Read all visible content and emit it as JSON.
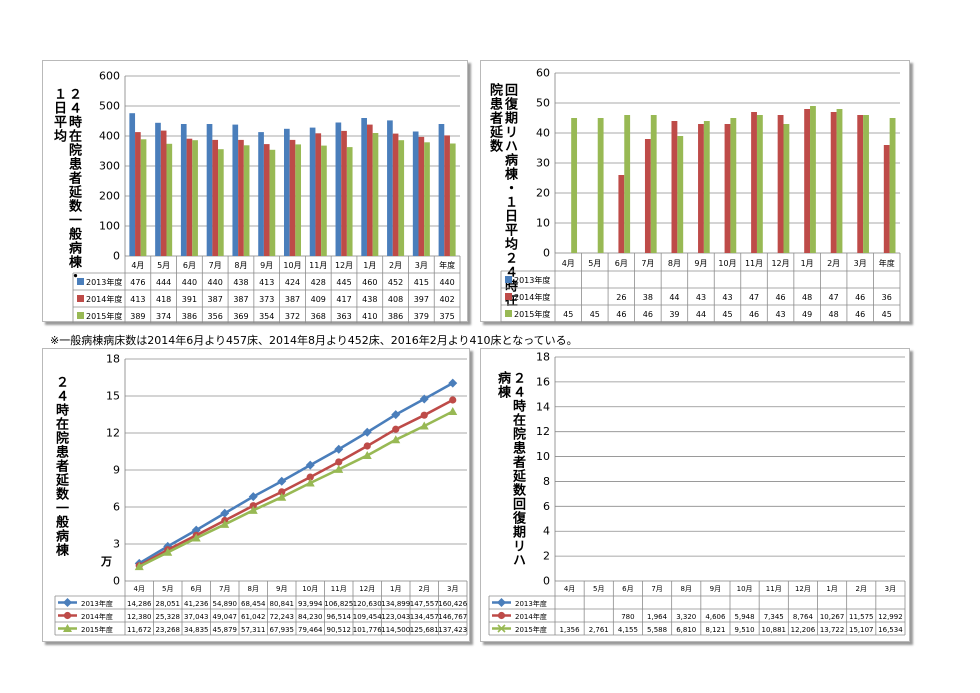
{
  "note": "※一般病棟病床数は2014年6月より457床、2014年8月より452床、2016年2月より410床となっている。",
  "colors": {
    "s2013": "#4a7ebb",
    "s2014": "#be4b48",
    "s2015": "#98b954"
  },
  "chart_data": [
    {
      "id": "c1",
      "type": "bar",
      "ylabel": "２４時在院患者延数 一般病棟・１日平均",
      "ylabel_cols": [
        "２４時在院患者延数",
        "一般病棟・１日平均"
      ],
      "ylim": [
        0,
        600
      ],
      "yticks": [
        0,
        100,
        200,
        300,
        400,
        500,
        600
      ],
      "categories": [
        "4月",
        "5月",
        "6月",
        "7月",
        "8月",
        "9月",
        "10月",
        "11月",
        "12月",
        "1月",
        "2月",
        "3月",
        "年度"
      ],
      "series": [
        {
          "name": "2013年度",
          "color": "#4a7ebb",
          "values": [
            476,
            444,
            440,
            440,
            438,
            413,
            424,
            428,
            445,
            460,
            452,
            415,
            440
          ]
        },
        {
          "name": "2014年度",
          "color": "#be4b48",
          "values": [
            413,
            418,
            391,
            387,
            387,
            373,
            387,
            409,
            417,
            438,
            408,
            397,
            402
          ]
        },
        {
          "name": "2015年度",
          "color": "#98b954",
          "values": [
            389,
            374,
            386,
            356,
            369,
            354,
            372,
            368,
            363,
            410,
            386,
            379,
            375
          ]
        }
      ]
    },
    {
      "id": "c2",
      "type": "bar",
      "ylabel": "回復期リハ病棟・１日平均 ２４時在院患者延数",
      "ylabel_cols": [
        "回復期リハ病棟・１日平均",
        "２４時在院患者延数"
      ],
      "ylim": [
        0,
        60
      ],
      "yticks": [
        0,
        10,
        20,
        30,
        40,
        50,
        60
      ],
      "categories": [
        "4月",
        "5月",
        "6月",
        "7月",
        "8月",
        "9月",
        "10月",
        "11月",
        "12月",
        "1月",
        "2月",
        "3月",
        "年度"
      ],
      "series": [
        {
          "name": "2013年度",
          "color": "#4a7ebb",
          "values": [
            null,
            null,
            null,
            null,
            null,
            null,
            null,
            null,
            null,
            null,
            null,
            null,
            null
          ]
        },
        {
          "name": "2014年度",
          "color": "#be4b48",
          "values": [
            null,
            null,
            26,
            38,
            44,
            43,
            43,
            47,
            46,
            48,
            47,
            46,
            36
          ]
        },
        {
          "name": "2015年度",
          "color": "#98b954",
          "values": [
            45,
            45,
            46,
            46,
            39,
            44,
            45,
            46,
            43,
            49,
            48,
            46,
            45
          ]
        }
      ]
    },
    {
      "id": "c3",
      "type": "line",
      "ylabel": "２４時在院患者延数 一般病棟",
      "ylabel_cols": [
        "２４時在院患者延数",
        "一般病棟"
      ],
      "unit": "万",
      "ylim": [
        0,
        18
      ],
      "yticks": [
        0,
        3,
        6,
        9,
        12,
        15,
        18
      ],
      "categories": [
        "4月",
        "5月",
        "6月",
        "7月",
        "8月",
        "9月",
        "10月",
        "11月",
        "12月",
        "1月",
        "2月",
        "3月"
      ],
      "series": [
        {
          "name": "2013年度",
          "color": "#4a7ebb",
          "marker": "diamond",
          "values": [
            14286,
            28051,
            41236,
            54890,
            68454,
            80841,
            93994,
            106825,
            120630,
            134899,
            147557,
            160426
          ],
          "labels": [
            "14,286",
            "28,051",
            "41,236",
            "54,890",
            "68,454",
            "80,841",
            "93,994",
            "106,825",
            "120,630",
            "134,899",
            "147,557",
            "160,426"
          ]
        },
        {
          "name": "2014年度",
          "color": "#be4b48",
          "marker": "circle",
          "values": [
            12380,
            25328,
            37043,
            49047,
            61042,
            72243,
            84230,
            96514,
            109454,
            123043,
            134457,
            146767
          ],
          "labels": [
            "12,380",
            "25,328",
            "37,043",
            "49,047",
            "61,042",
            "72,243",
            "84,230",
            "96,514",
            "109,454",
            "123,043",
            "134,457",
            "146,767"
          ]
        },
        {
          "name": "2015年度",
          "color": "#98b954",
          "marker": "triangle",
          "values": [
            11672,
            23268,
            34835,
            45879,
            57311,
            67935,
            79464,
            90512,
            101776,
            114500,
            125681,
            137423
          ],
          "labels": [
            "11,672",
            "23,268",
            "34,835",
            "45,879",
            "57,311",
            "67,935",
            "79,464",
            "90,512",
            "101,776",
            "114,500",
            "125,681",
            "137,423"
          ]
        }
      ]
    },
    {
      "id": "c4",
      "type": "line",
      "ylabel": "２４時在院患者延数 回復期リハ病棟",
      "ylabel_cols": [
        "２４時在院患者延数",
        "回復期リハ病棟"
      ],
      "ylim": [
        0,
        18
      ],
      "yticks": [
        0,
        2,
        4,
        6,
        8,
        10,
        12,
        14,
        16,
        18
      ],
      "categories": [
        "4月",
        "5月",
        "6月",
        "7月",
        "8月",
        "9月",
        "10月",
        "11月",
        "12月",
        "1月",
        "2月",
        "3月"
      ],
      "series": [
        {
          "name": "2013年度",
          "color": "#4a7ebb",
          "marker": "diamond",
          "values": [
            null,
            null,
            null,
            null,
            null,
            null,
            null,
            null,
            null,
            null,
            null,
            null
          ],
          "labels": [
            "",
            "",
            "",
            "",
            "",
            "",
            "",
            "",
            "",
            "",
            "",
            ""
          ]
        },
        {
          "name": "2014年度",
          "color": "#be4b48",
          "marker": "circle",
          "values": [
            null,
            null,
            780,
            1964,
            3320,
            4606,
            5948,
            7345,
            8764,
            10267,
            11575,
            12992
          ],
          "labels": [
            "",
            "",
            "780",
            "1,964",
            "3,320",
            "4,606",
            "5,948",
            "7,345",
            "8,764",
            "10,267",
            "11,575",
            "12,992"
          ]
        },
        {
          "name": "2015年度",
          "color": "#98b954",
          "marker": "x",
          "values": [
            1356,
            2761,
            4155,
            5588,
            6810,
            8121,
            9510,
            10881,
            12206,
            13722,
            15107,
            16534
          ],
          "labels": [
            "1,356",
            "2,761",
            "4,155",
            "5,588",
            "6,810",
            "8,121",
            "9,510",
            "10,881",
            "12,206",
            "13,722",
            "15,107",
            "16,534"
          ]
        }
      ]
    }
  ]
}
